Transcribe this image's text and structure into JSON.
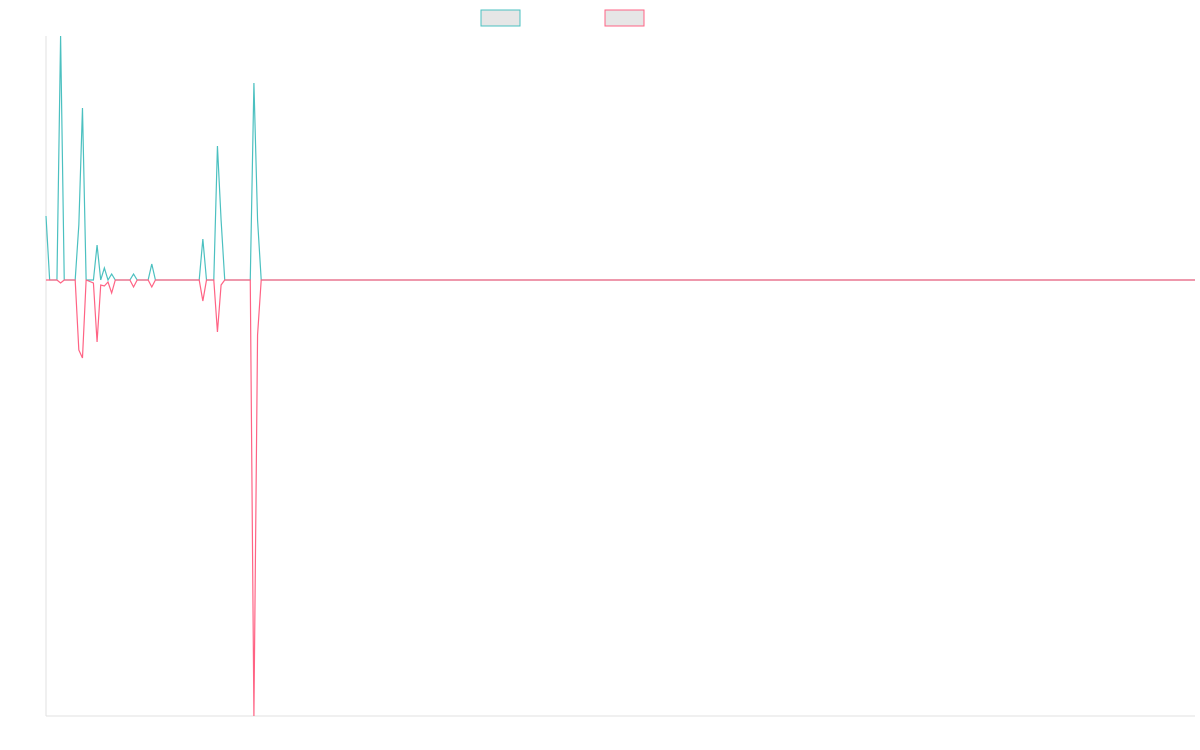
{
  "chart_data": {
    "type": "line",
    "x": [
      0,
      1,
      3,
      4,
      5,
      8,
      9,
      10,
      11,
      13,
      14,
      15,
      16,
      17,
      18,
      19,
      23,
      24,
      25,
      28,
      29,
      30,
      42,
      43,
      44,
      46,
      47,
      48,
      49,
      56,
      57,
      58,
      59,
      315
    ],
    "series": [
      {
        "color": "#4bc0c0",
        "values": [
          64,
          0,
          0,
          244,
          0,
          0,
          55,
          172,
          0,
          0,
          35,
          0,
          12,
          0,
          6,
          0,
          0,
          6,
          0,
          0,
          16,
          0,
          0,
          41,
          0,
          0,
          134,
          60,
          0,
          0,
          197,
          60,
          0,
          0
        ]
      },
      {
        "color": "#ff6384",
        "values": [
          0,
          0,
          0,
          -3,
          0,
          0,
          -70,
          -78,
          0,
          -3,
          -62,
          -5,
          -6,
          -2,
          -13,
          0,
          0,
          -7,
          0,
          0,
          -7,
          0,
          0,
          -21,
          0,
          0,
          -52,
          -5,
          0,
          0,
          -436,
          -55,
          0,
          0
        ]
      }
    ],
    "xlim": [
      0,
      315
    ],
    "ylim": [
      -436,
      244
    ]
  }
}
